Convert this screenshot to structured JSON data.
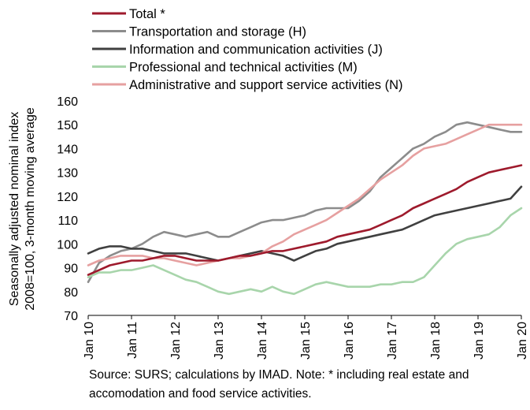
{
  "chart_data": {
    "type": "line",
    "ylabel": [
      "Seasonally adjusted nominal index",
      "2008=100, 3-month moving average"
    ],
    "ylim": [
      70,
      160
    ],
    "yticks": [
      70,
      80,
      90,
      100,
      110,
      120,
      130,
      140,
      150,
      160
    ],
    "xlim": [
      "2010-01",
      "2020-01"
    ],
    "xtick_labels": [
      "Jan 10",
      "Jan 11",
      "Jan 12",
      "Jan 13",
      "Jan 14",
      "Jan 15",
      "Jan 16",
      "Jan 17",
      "Jan 18",
      "Jan 19",
      "Jan 20"
    ],
    "grid": false,
    "legend_position": "top-left",
    "series_points": "quarterly (Jan/Apr/Jul/Oct) from Jan 2010 to Jan 2020",
    "series": [
      {
        "name": "Transportation and storage (H)",
        "color": "#8c8c8c",
        "values": [
          84,
          92,
          95,
          97,
          98,
          100,
          103,
          105,
          104,
          103,
          104,
          105,
          103,
          103,
          105,
          107,
          109,
          110,
          110,
          111,
          112,
          114,
          115,
          115,
          115,
          118,
          122,
          128,
          132,
          136,
          140,
          142,
          145,
          147,
          150,
          151,
          150,
          149,
          148,
          147,
          147
        ]
      },
      {
        "name": "Information and communication activities (J)",
        "color": "#404040",
        "values": [
          96,
          98,
          99,
          99,
          98,
          98,
          97,
          96,
          96,
          96,
          95,
          94,
          93,
          94,
          95,
          96,
          97,
          96,
          95,
          93,
          95,
          97,
          98,
          100,
          101,
          102,
          103,
          104,
          105,
          106,
          108,
          110,
          112,
          113,
          114,
          115,
          116,
          117,
          118,
          119,
          124
        ]
      },
      {
        "name": "Professional and technical activities (M)",
        "color": "#a8d5ab",
        "values": [
          86,
          88,
          88,
          89,
          89,
          90,
          91,
          89,
          87,
          85,
          84,
          82,
          80,
          79,
          80,
          81,
          80,
          82,
          80,
          79,
          81,
          83,
          84,
          83,
          82,
          82,
          82,
          83,
          83,
          84,
          84,
          86,
          91,
          96,
          100,
          102,
          103,
          104,
          107,
          112,
          115
        ]
      },
      {
        "name": "Administrative and support service activities (N)",
        "color": "#e6a0a0",
        "values": [
          91,
          93,
          94,
          95,
          95,
          95,
          94,
          94,
          93,
          92,
          91,
          92,
          93,
          94,
          94,
          95,
          96,
          99,
          101,
          104,
          106,
          108,
          110,
          113,
          116,
          119,
          123,
          127,
          130,
          133,
          137,
          140,
          141,
          142,
          144,
          146,
          148,
          150,
          150,
          150,
          150
        ]
      },
      {
        "name": "Total *",
        "color": "#9e1a2c",
        "values": [
          87,
          89,
          91,
          92,
          93,
          93,
          94,
          95,
          95,
          94,
          93,
          93,
          93,
          94,
          95,
          95,
          96,
          97,
          97,
          98,
          99,
          100,
          101,
          103,
          104,
          105,
          106,
          108,
          110,
          112,
          115,
          117,
          119,
          121,
          123,
          126,
          128,
          130,
          131,
          132,
          133
        ]
      }
    ],
    "legend_order": [
      "Total *",
      "Transportation and storage (H)",
      "Information and communication activities (J)",
      "Professional and technical activities (M)",
      "Administrative and support service activities (N)"
    ]
  },
  "source_text": "Source:  SURS; calculations by IMAD. Note: * including real estate and accomodation and food service activities."
}
